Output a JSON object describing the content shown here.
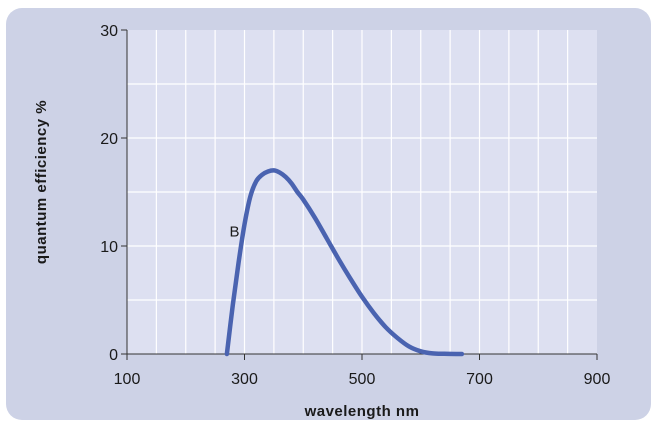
{
  "chart_data": {
    "type": "line",
    "title": "",
    "xlabel": "wavelength  nm",
    "ylabel": "quantum efficiency   %",
    "xlim": [
      100,
      900
    ],
    "ylim": [
      0,
      30
    ],
    "xticks": [
      100,
      300,
      500,
      700,
      900
    ],
    "yticks": [
      0,
      10,
      20,
      30
    ],
    "x_minor_step": 50,
    "y_minor_step": 5,
    "grid": true,
    "colors": {
      "background_panel": "#cdd2e6",
      "plot_area": "#dde0f1",
      "grid": "#ffffff",
      "line": "#4a63b0"
    },
    "series": [
      {
        "name": "B",
        "x": [
          270,
          280,
          290,
          300,
          310,
          320,
          330,
          340,
          350,
          360,
          370,
          380,
          390,
          400,
          420,
          440,
          460,
          480,
          500,
          520,
          540,
          560,
          580,
          600,
          620,
          640,
          660,
          670
        ],
        "y": [
          0,
          4.5,
          8.5,
          12.0,
          14.6,
          16.0,
          16.6,
          16.9,
          17.0,
          16.8,
          16.4,
          15.8,
          15.0,
          14.3,
          12.6,
          10.7,
          8.8,
          7.0,
          5.3,
          3.8,
          2.5,
          1.5,
          0.7,
          0.25,
          0.06,
          0.02,
          0.0,
          0.0
        ]
      }
    ]
  }
}
